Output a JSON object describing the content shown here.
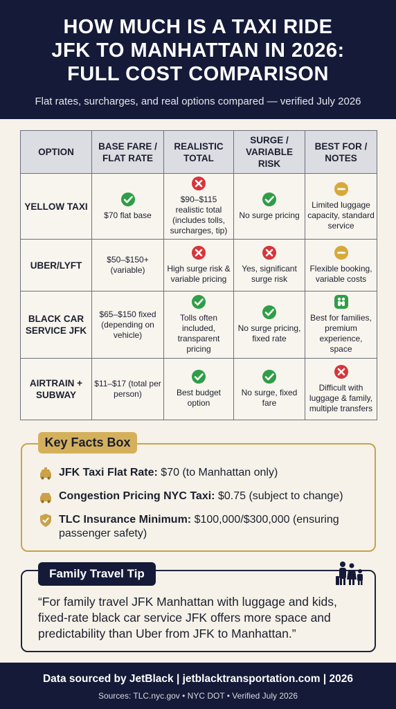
{
  "header": {
    "title_lines": [
      "HOW MUCH IS A TAXI RIDE",
      "JFK TO MANHATTAN IN 2026:",
      "FULL COST COMPARISON"
    ],
    "subtitle": "Flat rates, surcharges, and real options compared — verified July 2026"
  },
  "table": {
    "columns": [
      "OPTION",
      "BASE FARE / FLAT RATE",
      "REALISTIC TOTAL",
      "SURGE / VARIABLE RISK",
      "BEST FOR / NOTES"
    ],
    "rows": [
      {
        "option": "YELLOW TAXI",
        "cells": [
          {
            "icon": "check",
            "text": "$70 flat base"
          },
          {
            "icon": "cross",
            "text": "$90–$115 realistic total (includes tolls, surcharges, tip)"
          },
          {
            "icon": "check",
            "text": "No surge pricing"
          },
          {
            "icon": "minus",
            "text": "Limited luggage capacity, standard service"
          }
        ]
      },
      {
        "option": "UBER/LYFT",
        "cells": [
          {
            "icon": null,
            "text": "$50–$150+ (variable)"
          },
          {
            "icon": "cross",
            "text": "High surge risk & variable pricing"
          },
          {
            "icon": "cross",
            "text": "Yes, significant surge risk"
          },
          {
            "icon": "minus",
            "text": "Flexible booking, variable costs"
          }
        ]
      },
      {
        "option": "BLACK CAR SERVICE JFK",
        "cells": [
          {
            "icon": null,
            "text": "$65–$150 fixed (depending on vehicle)"
          },
          {
            "icon": "check",
            "text": "Tolls often included, transparent pricing"
          },
          {
            "icon": "check",
            "text": "No surge pricing, fixed rate"
          },
          {
            "icon": "family",
            "text": "Best for families, premium experience, space"
          }
        ]
      },
      {
        "option": "AIRTRAIN + SUBWAY",
        "cells": [
          {
            "icon": null,
            "text": "$11–$17 (total per person)"
          },
          {
            "icon": "check",
            "text": "Best budget option"
          },
          {
            "icon": "check",
            "text": "No surge, fixed fare"
          },
          {
            "icon": "cross",
            "text": "Difficult with luggage & family, multiple transfers"
          }
        ]
      }
    ]
  },
  "key_facts": {
    "title": "Key Facts Box",
    "items": [
      {
        "label": "JFK Taxi Flat Rate:",
        "value": "$70 (to Manhattan only)"
      },
      {
        "label": "Congestion Pricing NYC Taxi:",
        "value": "$0.75 (subject to change)"
      },
      {
        "label": "TLC Insurance Minimum:",
        "value": "$100,000/$300,000 (ensuring passenger safety)"
      }
    ]
  },
  "tip": {
    "title": "Family Travel Tip",
    "quote": "“For family travel JFK Manhattan with luggage and kids, fixed-rate black car service JFK offers more space and predictability than Uber from JFK to Manhattan.”"
  },
  "footer": {
    "line1": "Data sourced by JetBlack | jetblacktransportation.com | 2026",
    "line2": "Sources: TLC.nyc.gov • NYC DOT • Verified July 2026"
  }
}
